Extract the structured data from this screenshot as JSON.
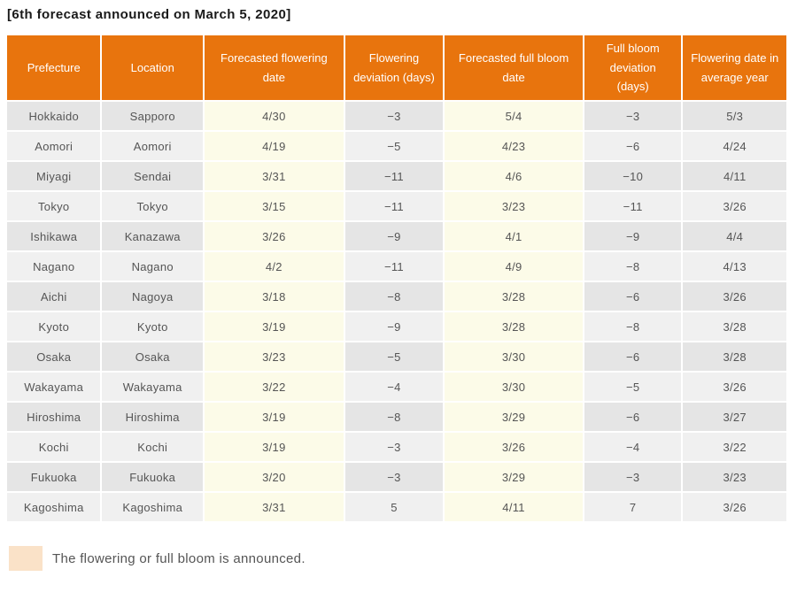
{
  "title": "[6th forecast announced on March 5, 2020]",
  "table": {
    "columns": [
      {
        "key": "prefecture",
        "label": "Prefecture",
        "highlight": false
      },
      {
        "key": "location",
        "label": "Location",
        "highlight": false
      },
      {
        "key": "forecasted-flowering-date",
        "label": "Forecasted flowering date",
        "highlight": true
      },
      {
        "key": "flowering-deviation",
        "label": "Flowering deviation (days)",
        "highlight": false
      },
      {
        "key": "forecasted-full-bloom-date",
        "label": "Forecasted full bloom date",
        "highlight": true
      },
      {
        "key": "full-bloom-deviation",
        "label": "Full bloom deviation (days)",
        "highlight": false
      },
      {
        "key": "flowering-date-average-year",
        "label": "Flowering date in average year",
        "highlight": false
      }
    ],
    "rows": [
      [
        "Hokkaido",
        "Sapporo",
        "4/30",
        "−3",
        "5/4",
        "−3",
        "5/3"
      ],
      [
        "Aomori",
        "Aomori",
        "4/19",
        "−5",
        "4/23",
        "−6",
        "4/24"
      ],
      [
        "Miyagi",
        "Sendai",
        "3/31",
        "−11",
        "4/6",
        "−10",
        "4/11"
      ],
      [
        "Tokyo",
        "Tokyo",
        "3/15",
        "−11",
        "3/23",
        "−11",
        "3/26"
      ],
      [
        "Ishikawa",
        "Kanazawa",
        "3/26",
        "−9",
        "4/1",
        "−9",
        "4/4"
      ],
      [
        "Nagano",
        "Nagano",
        "4/2",
        "−11",
        "4/9",
        "−8",
        "4/13"
      ],
      [
        "Aichi",
        "Nagoya",
        "3/18",
        "−8",
        "3/28",
        "−6",
        "3/26"
      ],
      [
        "Kyoto",
        "Kyoto",
        "3/19",
        "−9",
        "3/28",
        "−8",
        "3/28"
      ],
      [
        "Osaka",
        "Osaka",
        "3/23",
        "−5",
        "3/30",
        "−6",
        "3/28"
      ],
      [
        "Wakayama",
        "Wakayama",
        "3/22",
        "−4",
        "3/30",
        "−5",
        "3/26"
      ],
      [
        "Hiroshima",
        "Hiroshima",
        "3/19",
        "−8",
        "3/29",
        "−6",
        "3/27"
      ],
      [
        "Kochi",
        "Kochi",
        "3/19",
        "−3",
        "3/26",
        "−4",
        "3/22"
      ],
      [
        "Fukuoka",
        "Fukuoka",
        "3/20",
        "−3",
        "3/29",
        "−3",
        "3/23"
      ],
      [
        "Kagoshima",
        "Kagoshima",
        "3/31",
        "5",
        "4/11",
        "7",
        "3/26"
      ]
    ]
  },
  "legend": {
    "text": "The flowering or full bloom is announced.",
    "swatch_color": "#FAE2C8"
  },
  "colors": {
    "header_bg": "#E8740D",
    "header_text": "#FFFFFF",
    "row_stripe_dark": "#E5E5E5",
    "row_stripe_light": "#F0F0F0",
    "highlight_column_bg": "#FCFBE8",
    "body_text": "#555555"
  }
}
